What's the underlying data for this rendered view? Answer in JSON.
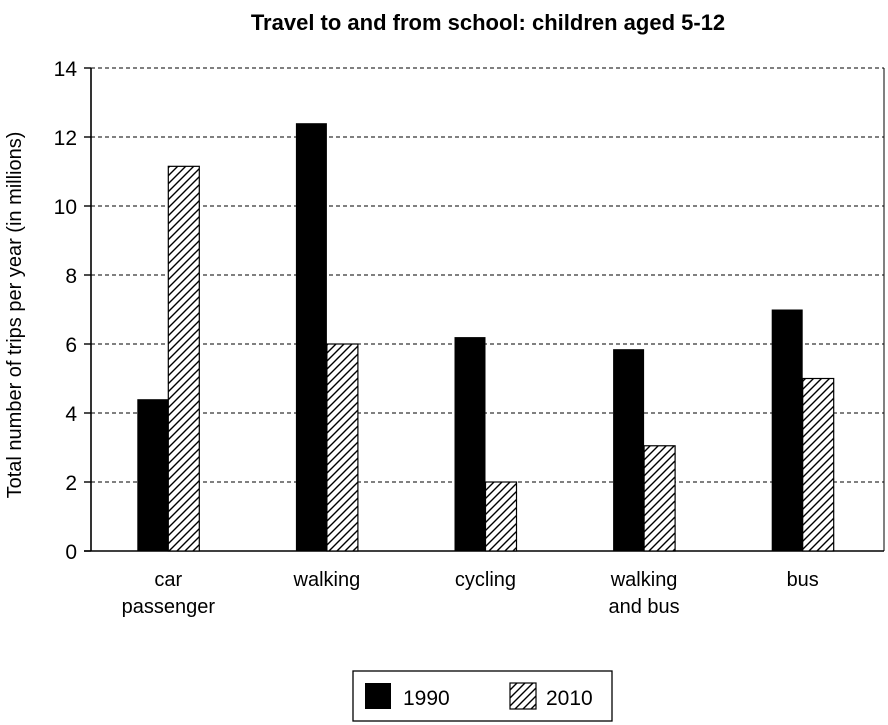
{
  "chart_data": {
    "type": "bar",
    "title": "Travel to and from school: children aged 5-12",
    "xlabel": "",
    "ylabel": "Total number of trips per year (in millions)",
    "ylim": [
      0,
      14
    ],
    "yticks": [
      0,
      2,
      4,
      6,
      8,
      10,
      12,
      14
    ],
    "grid": true,
    "legend_position": "bottom-center",
    "categories": [
      [
        "car",
        "passenger"
      ],
      [
        "walking"
      ],
      [
        "cycling"
      ],
      [
        "walking",
        "and bus"
      ],
      [
        "bus"
      ]
    ],
    "series": [
      {
        "name": "1990",
        "values": [
          4.4,
          12.4,
          6.2,
          5.85,
          7.0
        ],
        "fill": "solid",
        "color": "#000000"
      },
      {
        "name": "2010",
        "values": [
          11.15,
          6.0,
          2.0,
          3.05,
          5.0
        ],
        "fill": "hatched",
        "color": "#000000"
      }
    ]
  }
}
